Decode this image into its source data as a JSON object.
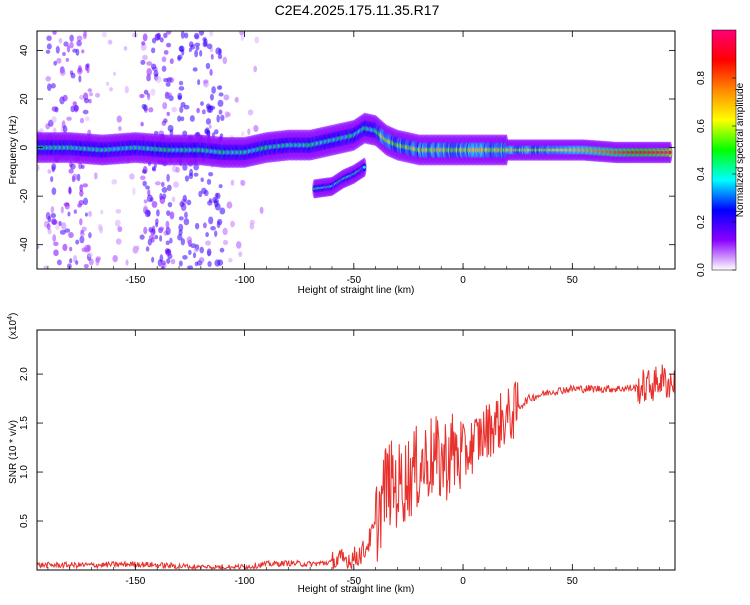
{
  "title": "C2E4.2025.175.11.35.R17",
  "colors": {
    "snr_line": "#e8302c",
    "axis": "#000000"
  },
  "spectrogram": {
    "xlabel": "Height of straight line (km)",
    "ylabel": "Frequency (Hz)",
    "x_ticks": [
      "-150",
      "-100",
      "-50",
      "0",
      "50"
    ],
    "y_ticks": [
      "-40",
      "-20",
      "0",
      "20",
      "40"
    ],
    "xlim": [
      -195,
      97
    ],
    "ylim": [
      -50,
      48
    ],
    "colorbar": {
      "label": "Normalized spectral amplitude",
      "ticks": [
        "0.0",
        "0.2",
        "0.4",
        "0.6",
        "0.8"
      ],
      "range": [
        0,
        1
      ],
      "colormap": [
        "#ffffff",
        "#8a00ff",
        "#0000ff",
        "#00ffff",
        "#00ff00",
        "#ffff00",
        "#ff8800",
        "#ff0000",
        "#ff0077"
      ]
    }
  },
  "chart_data": [
    {
      "type": "heatmap",
      "title": "C2E4.2025.175.11.35.R17",
      "xlabel": "Height of straight line (km)",
      "ylabel": "Frequency (Hz)",
      "xlim": [
        -195,
        97
      ],
      "ylim": [
        -50,
        48
      ],
      "ridges": [
        {
          "points": [
            [
              -195,
              0
            ],
            [
              -180,
              0
            ],
            [
              -165,
              -1
            ],
            [
              -150,
              0
            ],
            [
              -135,
              -1
            ],
            [
              -120,
              -1
            ],
            [
              -110,
              -2
            ],
            [
              -100,
              -2
            ],
            [
              -90,
              0
            ],
            [
              -80,
              1
            ],
            [
              -70,
              1
            ],
            [
              -60,
              3
            ],
            [
              -50,
              5
            ],
            [
              -45,
              8
            ],
            [
              -40,
              7
            ],
            [
              -35,
              3
            ],
            [
              -30,
              1
            ],
            [
              -25,
              0
            ],
            [
              -20,
              -1
            ],
            [
              -10,
              -1
            ],
            [
              0,
              -1
            ],
            [
              10,
              -1
            ],
            [
              25,
              -1
            ],
            [
              40,
              -1
            ],
            [
              55,
              -1
            ],
            [
              70,
              -2
            ],
            [
              85,
              -2
            ],
            [
              95,
              -2
            ]
          ],
          "peak_amplitude": 1.0
        },
        {
          "points": [
            [
              -68,
              -17
            ],
            [
              -60,
              -16
            ],
            [
              -55,
              -13
            ],
            [
              -50,
              -11
            ],
            [
              -45,
              -8
            ]
          ],
          "peak_amplitude": 0.5
        }
      ]
    },
    {
      "type": "line",
      "xlabel": "Height of straight line (km)",
      "ylabel": "SNR (10 * v/v)",
      "y_multiplier": "(x10",
      "y_multiplier_exp": "4",
      "y_multiplier_close": ")",
      "x_ticks": [
        "-150",
        "-100",
        "-50",
        "0",
        "50"
      ],
      "y_ticks": [
        "0.5",
        "1.0",
        "1.5",
        "2.0"
      ],
      "xlim": [
        -195,
        97
      ],
      "ylim": [
        0,
        2.45
      ],
      "series": [
        {
          "x": [
            -195,
            -170,
            -150,
            -120,
            -100,
            -90,
            -80,
            -70,
            -60,
            -50,
            -45,
            -40,
            -35,
            -30,
            -25,
            -20,
            -15,
            -10,
            -5,
            0,
            5,
            10,
            15,
            20,
            25,
            30,
            40,
            50,
            60,
            70,
            80,
            85,
            88,
            90,
            95,
            97
          ],
          "y": [
            0.05,
            0.05,
            0.06,
            0.03,
            0.03,
            0.06,
            0.07,
            0.06,
            0.08,
            0.12,
            0.2,
            0.45,
            0.9,
            0.85,
            0.95,
            1.05,
            1.15,
            1.1,
            1.2,
            1.15,
            1.3,
            1.4,
            1.5,
            1.55,
            1.65,
            1.75,
            1.82,
            1.85,
            1.85,
            1.85,
            1.86,
            1.88,
            1.9,
            1.95,
            1.9,
            1.92
          ]
        }
      ]
    }
  ]
}
